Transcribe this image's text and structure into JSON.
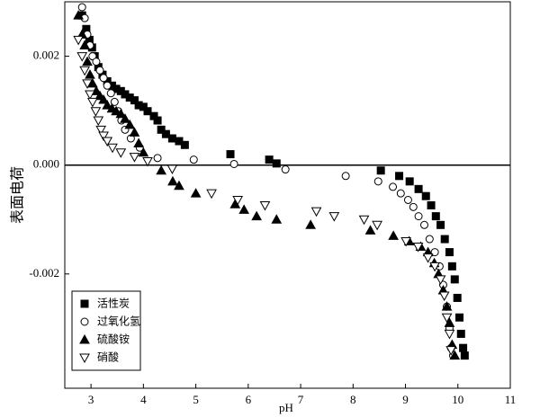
{
  "chart_data": {
    "type": "scatter",
    "x_label": "pH",
    "y_label": "表面电荷",
    "xlim": [
      2.5,
      11
    ],
    "xticks": [
      3,
      4,
      5,
      6,
      7,
      8,
      9,
      10,
      11
    ],
    "ylim": [
      -0.0041,
      0.003
    ],
    "yticks": [
      -0.002,
      {
        "value": 0,
        "label": "0.000"
      },
      0.002
    ],
    "zero_line": true,
    "legend": "lower left",
    "series": [
      {
        "name": "活性炭",
        "color": "#000000",
        "marker": "square",
        "filled": true,
        "x": [
          2.83,
          2.91,
          2.97,
          3.02,
          3.07,
          3.14,
          3.22,
          3.31,
          3.4,
          3.48,
          3.57,
          3.65,
          3.74,
          3.83,
          3.91,
          4.0,
          4.08,
          4.2,
          4.27,
          4.34,
          4.43,
          4.55,
          4.68,
          4.79,
          5.66,
          6.4,
          6.54,
          8.53,
          8.88,
          9.08,
          9.25,
          9.39,
          9.49,
          9.58,
          9.67,
          9.75,
          9.84,
          9.89,
          9.94,
          9.99,
          10.03,
          10.06,
          10.1,
          10.13
        ],
        "values": [
          0.00275,
          0.0025,
          0.0023,
          0.00216,
          0.002,
          0.0018,
          0.00166,
          0.00154,
          0.00146,
          0.0014,
          0.00136,
          0.0013,
          0.00124,
          0.00119,
          0.0011,
          0.00107,
          0.00099,
          0.0009,
          0.00082,
          0.00065,
          0.00057,
          0.00049,
          0.00044,
          0.00037,
          0.0002,
          0.0001,
          3e-05,
          -0.0001,
          -0.0002,
          -0.0003,
          -0.00044,
          -0.00057,
          -0.00074,
          -0.00094,
          -0.0011,
          -0.00136,
          -0.0016,
          -0.00186,
          -0.0021,
          -0.00244,
          -0.0028,
          -0.0031,
          -0.00336,
          -0.0035
        ]
      },
      {
        "name": "过氧化氢",
        "color": "#000000",
        "marker": "circle",
        "filled": false,
        "x": [
          2.83,
          2.88,
          2.93,
          2.98,
          3.03,
          3.1,
          3.17,
          3.24,
          3.31,
          3.38,
          3.45,
          3.52,
          3.58,
          3.65,
          3.76,
          3.93,
          4.27,
          4.96,
          5.73,
          6.71,
          7.86,
          8.48,
          8.76,
          8.91,
          9.05,
          9.15,
          9.25,
          9.36,
          9.46,
          9.56,
          9.65,
          9.72,
          9.79,
          9.84,
          9.87,
          9.91
        ],
        "values": [
          0.0029,
          0.0027,
          0.0024,
          0.0022,
          0.002,
          0.0019,
          0.00174,
          0.0016,
          0.00146,
          0.00132,
          0.00116,
          0.00099,
          0.00082,
          0.00065,
          0.00049,
          0.00032,
          0.00013,
          0.0001,
          2e-05,
          -8e-05,
          -0.0002,
          -0.0003,
          -0.0004,
          -0.00052,
          -0.00064,
          -0.00077,
          -0.00094,
          -0.0011,
          -0.00136,
          -0.0016,
          -0.00186,
          -0.0022,
          -0.0026,
          -0.003,
          -0.00336,
          -0.0035
        ]
      },
      {
        "name": "硫酸铵",
        "color": "#000000",
        "marker": "triangle-up",
        "filled": true,
        "x": [
          2.76,
          2.83,
          2.88,
          2.93,
          2.98,
          3.03,
          3.1,
          3.17,
          3.24,
          3.31,
          3.4,
          3.48,
          3.57,
          3.65,
          3.74,
          3.83,
          3.91,
          4.0,
          4.34,
          4.56,
          4.68,
          5.0,
          5.75,
          5.92,
          6.16,
          6.54,
          7.19,
          8.33,
          8.77,
          9.07,
          9.29,
          9.43,
          9.55,
          9.63,
          9.72,
          9.79,
          9.84,
          9.89,
          9.94
        ],
        "values": [
          0.00275,
          0.0024,
          0.0022,
          0.0019,
          0.00166,
          0.0015,
          0.00136,
          0.00127,
          0.0012,
          0.0011,
          0.00104,
          0.00099,
          0.00094,
          0.00085,
          0.00074,
          0.0006,
          0.0004,
          0.00023,
          -0.0001,
          -0.0003,
          -0.00038,
          -0.00052,
          -0.00072,
          -0.00082,
          -0.00094,
          -0.001,
          -0.0011,
          -0.0012,
          -0.0013,
          -0.0014,
          -0.0015,
          -0.0016,
          -0.0018,
          -0.002,
          -0.0023,
          -0.0026,
          -0.0029,
          -0.0033,
          -0.0035
        ]
      },
      {
        "name": "硝酸",
        "color": "#000000",
        "marker": "triangle-down",
        "filled": false,
        "x": [
          2.76,
          2.83,
          2.88,
          2.93,
          2.98,
          3.03,
          3.09,
          3.14,
          3.19,
          3.24,
          3.31,
          3.41,
          3.57,
          3.83,
          4.08,
          4.55,
          5.3,
          5.8,
          6.32,
          7.3,
          7.64,
          8.21,
          8.46,
          9.01,
          9.24,
          9.43,
          9.56,
          9.67,
          9.74,
          9.79,
          9.84,
          9.87
        ],
        "values": [
          0.0023,
          0.002,
          0.00174,
          0.0015,
          0.0013,
          0.00116,
          0.00099,
          0.00082,
          0.00065,
          0.00054,
          0.00044,
          0.00032,
          0.00023,
          0.00015,
          7e-05,
          -7e-05,
          -0.00052,
          -0.00064,
          -0.00074,
          -0.00085,
          -0.00094,
          -0.001,
          -0.0011,
          -0.0014,
          -0.0015,
          -0.0017,
          -0.00186,
          -0.0021,
          -0.0024,
          -0.0028,
          -0.0031,
          -0.0034
        ]
      }
    ]
  }
}
